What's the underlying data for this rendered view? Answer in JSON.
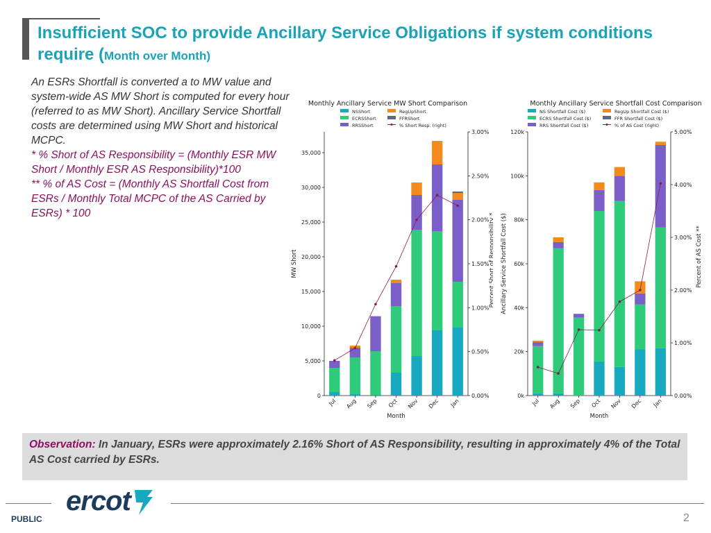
{
  "slide": {
    "title_main": "Insufficient SOC to provide Ancillary Service Obligations if system conditions require (",
    "title_small": "Month over Month)",
    "desc1": "An ESRs Shortfall is converted a to MW value and system-wide AS MW Short is computed for every hour (referred to as MW Short). Ancillary Service Shortfall costs are determined using MW Short and historical MCPC.",
    "desc2": "* % Short of AS Responsibility = (Monthly ESR MW Short / Monthly ESR AS Responsibility)*100",
    "desc3": "** % of AS Cost = (Monthly AS Shortfall Cost from ESRs / Monthly Total MCPC of the AS Carried by ESRs) * 100",
    "observation_label": "Observation:",
    "observation_text": " In January, ESRs were approximately 2.16% Short of AS Responsibility, resulting in approximately 4% of the Total AS Cost carried by ESRs.",
    "logo_text": "ercot",
    "footer_label": "PUBLIC",
    "page_number": "2"
  },
  "colors": {
    "ns": "#17a9c0",
    "ecrs": "#2ecc7a",
    "rrs": "#7b5fc8",
    "regup": "#f28a1c",
    "ffr": "#5a6a7a",
    "pct": "#8b1a4a",
    "title": "#1aa3b8",
    "accent": "#8b1060"
  },
  "chart_data": [
    {
      "type": "bar",
      "stacked": true,
      "title": "Monthly Ancillary Service MW Short Comparison",
      "xlabel": "Month",
      "ylabel": "MW Short",
      "y2label": "Percent Short of Responsibility *",
      "categories": [
        "Jul",
        "Aug",
        "Sep",
        "Oct",
        "Nov",
        "Dec",
        "Jan"
      ],
      "ylim": [
        0,
        38000
      ],
      "yticks": [
        0,
        5000,
        10000,
        15000,
        20000,
        25000,
        30000,
        35000
      ],
      "ytick_labels": [
        "0",
        "5,000",
        "10,000",
        "15,000",
        "20,000",
        "25,000",
        "30,000",
        "35,000"
      ],
      "y2lim": [
        0,
        3.0
      ],
      "y2ticks": [
        0,
        0.5,
        1.0,
        1.5,
        2.0,
        2.5,
        3.0
      ],
      "y2tick_labels": [
        "0.00%",
        "0.50%",
        "1.00%",
        "1.50%",
        "2.00%",
        "2.50%",
        "3.00%"
      ],
      "series": [
        {
          "name": "NSShort",
          "color_key": "ns",
          "values": [
            500,
            200,
            100,
            3300,
            5700,
            9400,
            9800
          ]
        },
        {
          "name": "ECRSShort",
          "color_key": "ecrs",
          "values": [
            3500,
            5300,
            6300,
            9600,
            18200,
            14300,
            6600
          ]
        },
        {
          "name": "RRSShort",
          "color_key": "rrs",
          "values": [
            1000,
            1400,
            5000,
            3300,
            5000,
            9600,
            11800
          ]
        },
        {
          "name": "RegUpShort",
          "color_key": "regup",
          "values": [
            0,
            300,
            50,
            500,
            1800,
            3400,
            1000
          ]
        },
        {
          "name": "FFRShort",
          "color_key": "ffr",
          "values": [
            0,
            0,
            0,
            0,
            0,
            0,
            200
          ]
        }
      ],
      "line": {
        "name": "% Short Resp. (right)",
        "color_key": "pct",
        "values": [
          0.4,
          0.54,
          1.04,
          1.47,
          2.0,
          2.28,
          2.16
        ]
      },
      "legend": [
        "NSShort",
        "RegUpShort",
        "ECRSShort",
        "FFRShort",
        "RRSShort",
        "% Short Resp. (right)"
      ]
    },
    {
      "type": "bar",
      "stacked": true,
      "title": "Monthly Ancillary Service Shortfall Cost Comparison",
      "xlabel": "Month",
      "ylabel": "Ancillary Service Shortfall Cost ($)",
      "y2label": "Percent of AS Cost **",
      "categories": [
        "Jul",
        "Aug",
        "Sep",
        "Oct",
        "Nov",
        "Dec",
        "Jan"
      ],
      "ylim": [
        0,
        120000
      ],
      "yticks": [
        0,
        20000,
        40000,
        60000,
        80000,
        100000,
        120000
      ],
      "ytick_labels": [
        "0k",
        "20k",
        "40k",
        "60k",
        "80k",
        "100k",
        "120k"
      ],
      "y2lim": [
        0,
        5.0
      ],
      "y2ticks": [
        0,
        1,
        2,
        3,
        4,
        5
      ],
      "y2tick_labels": [
        "0.00%",
        "1.00%",
        "2.00%",
        "3.00%",
        "4.00%",
        "5.00%"
      ],
      "series": [
        {
          "name": "NS Shortfall Cost ($)",
          "color_key": "ns",
          "values": [
            1000,
            1000,
            0,
            15500,
            13000,
            21000,
            21500
          ]
        },
        {
          "name": "ECRS Shortfall Cost ($)",
          "color_key": "ecrs",
          "values": [
            21500,
            66000,
            35500,
            68500,
            75500,
            20500,
            55000
          ]
        },
        {
          "name": "RRS Shortfall Cost ($)",
          "color_key": "rrs",
          "values": [
            1800,
            2800,
            1700,
            9500,
            11500,
            5000,
            37500
          ]
        },
        {
          "name": "RegUp Shortfall Cost ($)",
          "color_key": "regup",
          "values": [
            700,
            2200,
            0,
            3500,
            4000,
            5500,
            1500
          ]
        },
        {
          "name": "FFR Shortfall Cost ($)",
          "color_key": "ffr",
          "values": [
            0,
            0,
            0,
            0,
            0,
            0,
            0
          ]
        }
      ],
      "line": {
        "name": "% of AS Cost (right)",
        "color_key": "pct",
        "values": [
          0.54,
          0.42,
          1.25,
          1.24,
          1.78,
          2.0,
          4.02
        ]
      },
      "legend": [
        "NS Shortfall Cost ($)",
        "RegUp Shortfall Cost ($)",
        "ECRS Shortfall Cost ($)",
        "FFR Shortfall Cost ($)",
        "RRS Shortfall Cost ($)",
        "% of AS Cost (right)"
      ]
    }
  ]
}
